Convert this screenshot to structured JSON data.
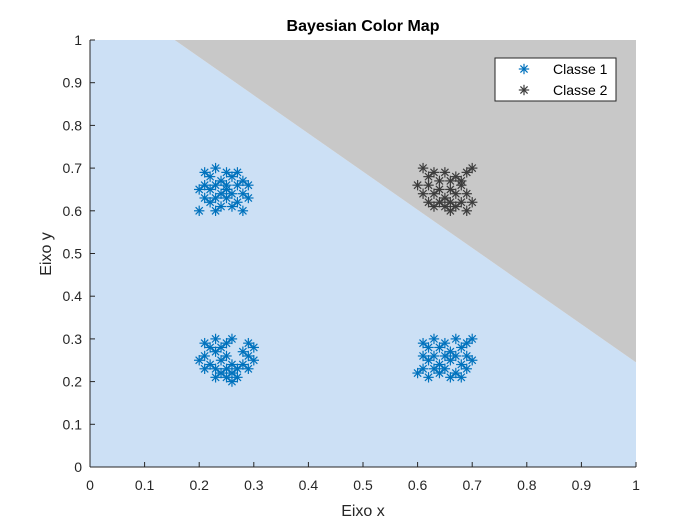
{
  "chart_data": {
    "type": "scatter",
    "title": "Bayesian Color Map",
    "xlabel": "Eixo x",
    "ylabel": "Eixo y",
    "xlim": [
      0,
      1
    ],
    "ylim": [
      0,
      1
    ],
    "xticks": [
      "0",
      "0.1",
      "0.2",
      "0.3",
      "0.4",
      "0.5",
      "0.6",
      "0.7",
      "0.8",
      "0.9",
      "1"
    ],
    "yticks": [
      "0",
      "0.1",
      "0.2",
      "0.3",
      "0.4",
      "0.5",
      "0.6",
      "0.7",
      "0.8",
      "0.9",
      "1"
    ],
    "grid": false,
    "legend_position": "top-right",
    "regions": [
      {
        "name": "Classe 1",
        "color": "#cce0f5"
      },
      {
        "name": "Classe 2",
        "color": "#c8c8c8"
      }
    ],
    "decision_boundary": {
      "x": [
        0.155,
        1.0
      ],
      "y": [
        1.0,
        0.245
      ]
    },
    "series": [
      {
        "name": "Classe 1",
        "marker": "asterisk",
        "color": "#0072bd",
        "points": [
          [
            0.21,
            0.69
          ],
          [
            0.23,
            0.7
          ],
          [
            0.25,
            0.69
          ],
          [
            0.27,
            0.69
          ],
          [
            0.22,
            0.68
          ],
          [
            0.24,
            0.67
          ],
          [
            0.26,
            0.68
          ],
          [
            0.28,
            0.67
          ],
          [
            0.21,
            0.66
          ],
          [
            0.23,
            0.66
          ],
          [
            0.25,
            0.66
          ],
          [
            0.27,
            0.66
          ],
          [
            0.29,
            0.66
          ],
          [
            0.2,
            0.65
          ],
          [
            0.22,
            0.65
          ],
          [
            0.24,
            0.64
          ],
          [
            0.26,
            0.64
          ],
          [
            0.28,
            0.64
          ],
          [
            0.21,
            0.63
          ],
          [
            0.23,
            0.63
          ],
          [
            0.25,
            0.63
          ],
          [
            0.27,
            0.62
          ],
          [
            0.29,
            0.63
          ],
          [
            0.22,
            0.62
          ],
          [
            0.24,
            0.61
          ],
          [
            0.26,
            0.61
          ],
          [
            0.2,
            0.6
          ],
          [
            0.23,
            0.6
          ],
          [
            0.28,
            0.6
          ],
          [
            0.25,
            0.65
          ],
          [
            0.21,
            0.29
          ],
          [
            0.23,
            0.3
          ],
          [
            0.25,
            0.29
          ],
          [
            0.26,
            0.3
          ],
          [
            0.29,
            0.29
          ],
          [
            0.22,
            0.28
          ],
          [
            0.24,
            0.28
          ],
          [
            0.28,
            0.27
          ],
          [
            0.3,
            0.28
          ],
          [
            0.21,
            0.26
          ],
          [
            0.23,
            0.27
          ],
          [
            0.25,
            0.26
          ],
          [
            0.29,
            0.26
          ],
          [
            0.2,
            0.25
          ],
          [
            0.22,
            0.24
          ],
          [
            0.24,
            0.25
          ],
          [
            0.26,
            0.24
          ],
          [
            0.28,
            0.24
          ],
          [
            0.3,
            0.25
          ],
          [
            0.21,
            0.23
          ],
          [
            0.23,
            0.23
          ],
          [
            0.25,
            0.23
          ],
          [
            0.27,
            0.23
          ],
          [
            0.29,
            0.23
          ],
          [
            0.24,
            0.22
          ],
          [
            0.26,
            0.22
          ],
          [
            0.23,
            0.21
          ],
          [
            0.25,
            0.21
          ],
          [
            0.27,
            0.21
          ],
          [
            0.26,
            0.2
          ],
          [
            0.61,
            0.29
          ],
          [
            0.63,
            0.3
          ],
          [
            0.65,
            0.29
          ],
          [
            0.67,
            0.3
          ],
          [
            0.69,
            0.29
          ],
          [
            0.7,
            0.3
          ],
          [
            0.62,
            0.28
          ],
          [
            0.64,
            0.28
          ],
          [
            0.66,
            0.27
          ],
          [
            0.68,
            0.28
          ],
          [
            0.61,
            0.26
          ],
          [
            0.63,
            0.26
          ],
          [
            0.65,
            0.26
          ],
          [
            0.67,
            0.26
          ],
          [
            0.69,
            0.26
          ],
          [
            0.62,
            0.25
          ],
          [
            0.64,
            0.24
          ],
          [
            0.66,
            0.25
          ],
          [
            0.68,
            0.24
          ],
          [
            0.7,
            0.25
          ],
          [
            0.61,
            0.23
          ],
          [
            0.63,
            0.23
          ],
          [
            0.65,
            0.23
          ],
          [
            0.67,
            0.22
          ],
          [
            0.69,
            0.23
          ],
          [
            0.6,
            0.22
          ],
          [
            0.62,
            0.21
          ],
          [
            0.64,
            0.22
          ],
          [
            0.66,
            0.21
          ],
          [
            0.68,
            0.21
          ]
        ]
      },
      {
        "name": "Classe 2",
        "marker": "asterisk",
        "color": "#3c3c3c",
        "points": [
          [
            0.61,
            0.7
          ],
          [
            0.63,
            0.69
          ],
          [
            0.65,
            0.69
          ],
          [
            0.67,
            0.68
          ],
          [
            0.69,
            0.69
          ],
          [
            0.7,
            0.7
          ],
          [
            0.62,
            0.68
          ],
          [
            0.64,
            0.67
          ],
          [
            0.66,
            0.67
          ],
          [
            0.68,
            0.67
          ],
          [
            0.6,
            0.66
          ],
          [
            0.62,
            0.66
          ],
          [
            0.64,
            0.65
          ],
          [
            0.66,
            0.65
          ],
          [
            0.68,
            0.66
          ],
          [
            0.61,
            0.64
          ],
          [
            0.63,
            0.64
          ],
          [
            0.65,
            0.63
          ],
          [
            0.67,
            0.64
          ],
          [
            0.69,
            0.64
          ],
          [
            0.62,
            0.62
          ],
          [
            0.64,
            0.62
          ],
          [
            0.66,
            0.62
          ],
          [
            0.68,
            0.62
          ],
          [
            0.7,
            0.62
          ],
          [
            0.63,
            0.61
          ],
          [
            0.65,
            0.61
          ],
          [
            0.67,
            0.61
          ],
          [
            0.69,
            0.6
          ],
          [
            0.66,
            0.6
          ]
        ]
      }
    ]
  }
}
